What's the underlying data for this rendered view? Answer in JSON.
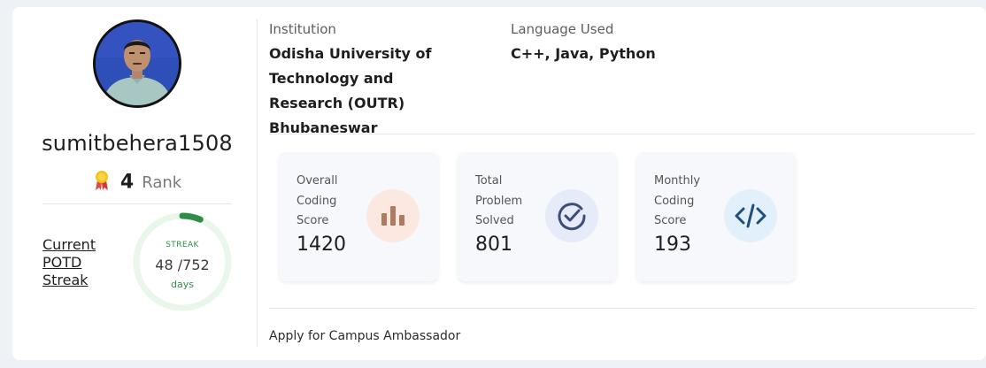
{
  "profile": {
    "username": "sumitbehera1508",
    "rank_value": "4",
    "rank_label": "Rank",
    "avatar_icon": "profile-photo"
  },
  "potd": {
    "link_label": "Current POTD Streak",
    "streak_label": "STREAK",
    "streak_current": "48",
    "streak_total": "/752",
    "streak_unit": "days",
    "streak_fraction": 0.0638
  },
  "info": {
    "institution_label": "Institution",
    "institution_value": "Odisha University of Technology and Research (OUTR) Bhubaneswar",
    "language_label": "Language Used",
    "language_value": "C++, Java, Python"
  },
  "stats": [
    {
      "label": "Overall Coding Score",
      "value": "1420",
      "icon": "bar-chart-icon",
      "icon_bg": "#fbe9e1",
      "icon_color": "#b07a5e"
    },
    {
      "label": "Total Problem Solved",
      "value": "801",
      "icon": "check-circle-icon",
      "icon_bg": "#e5ebf8",
      "icon_color": "#3d4d7a"
    },
    {
      "label": "Monthly Coding Score",
      "value": "193",
      "icon": "code-icon",
      "icon_bg": "#e2f0fb",
      "icon_color": "#1f4f7d"
    }
  ],
  "footer": {
    "ambassador_link": "Apply for Campus Ambassador"
  },
  "colors": {
    "streak_green": "#2f8d46",
    "streak_track": "#e8f7ea"
  }
}
